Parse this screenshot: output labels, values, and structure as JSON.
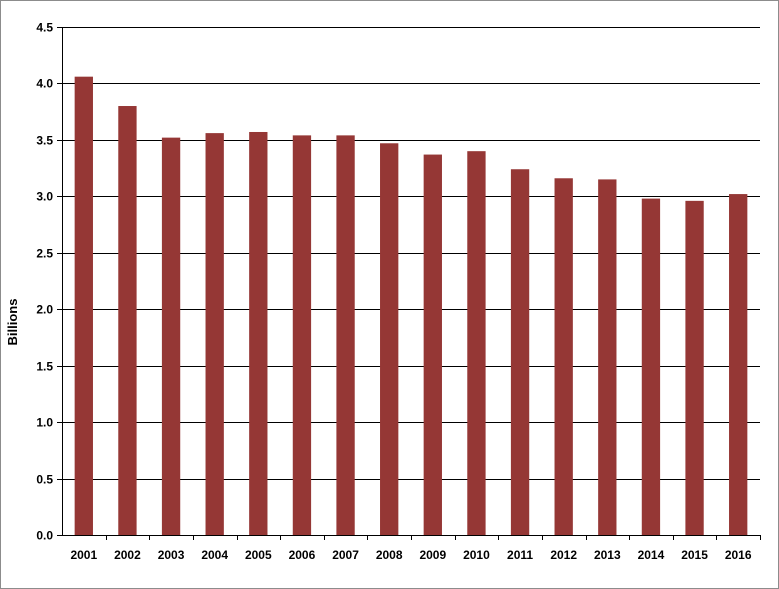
{
  "chart_data": {
    "type": "bar",
    "title": "",
    "xlabel": "",
    "ylabel": "Billions",
    "categories": [
      "2001",
      "2002",
      "2003",
      "2004",
      "2005",
      "2006",
      "2007",
      "2008",
      "2009",
      "2010",
      "2011",
      "2012",
      "2013",
      "2014",
      "2015",
      "2016"
    ],
    "values": [
      4.06,
      3.8,
      3.52,
      3.56,
      3.57,
      3.54,
      3.54,
      3.47,
      3.37,
      3.4,
      3.24,
      3.16,
      3.15,
      2.98,
      2.96,
      3.02
    ],
    "ylim": [
      0,
      4.5
    ],
    "yticks": [
      "0.0",
      "0.5",
      "1.0",
      "1.5",
      "2.0",
      "2.5",
      "3.0",
      "3.5",
      "4.0",
      "4.5"
    ],
    "grid": true,
    "legend": "none",
    "bar_color": "#953735"
  }
}
